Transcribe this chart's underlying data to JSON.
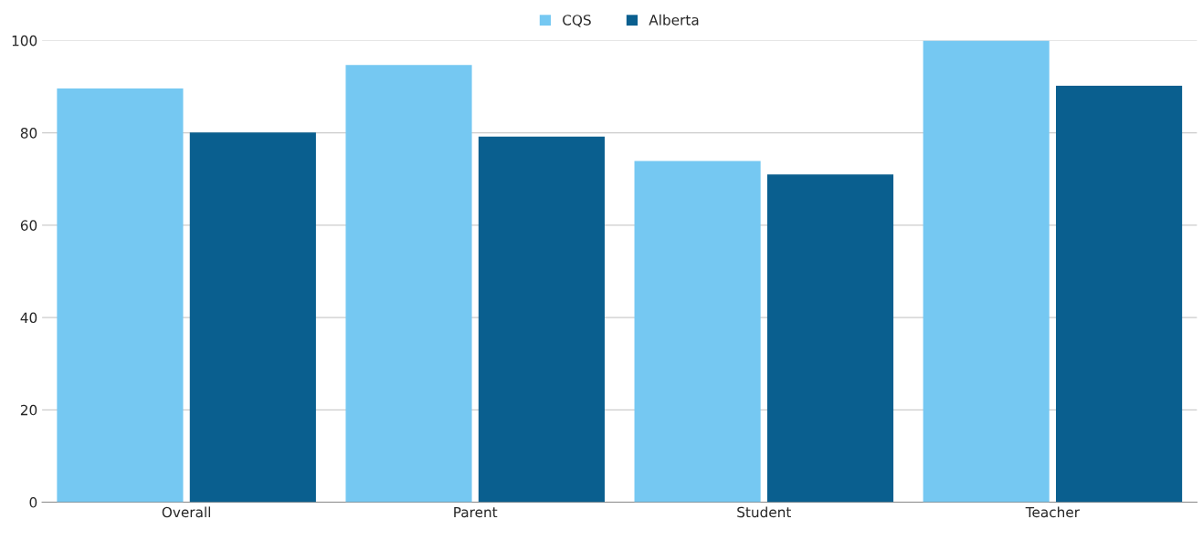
{
  "chart_data": {
    "type": "bar",
    "categories": [
      "Overall",
      "Parent",
      "Student",
      "Teacher"
    ],
    "series": [
      {
        "name": "CQS",
        "color": "#75c8f2",
        "values": [
          89.6,
          94.7,
          73.9,
          100
        ]
      },
      {
        "name": "Alberta",
        "color": "#0a5f8f",
        "values": [
          80.1,
          79.2,
          71.0,
          90.2
        ]
      }
    ],
    "ylim": [
      0,
      100
    ],
    "yticks": [
      0,
      20,
      40,
      60,
      80,
      100
    ],
    "grid": "y",
    "legend": "top"
  }
}
